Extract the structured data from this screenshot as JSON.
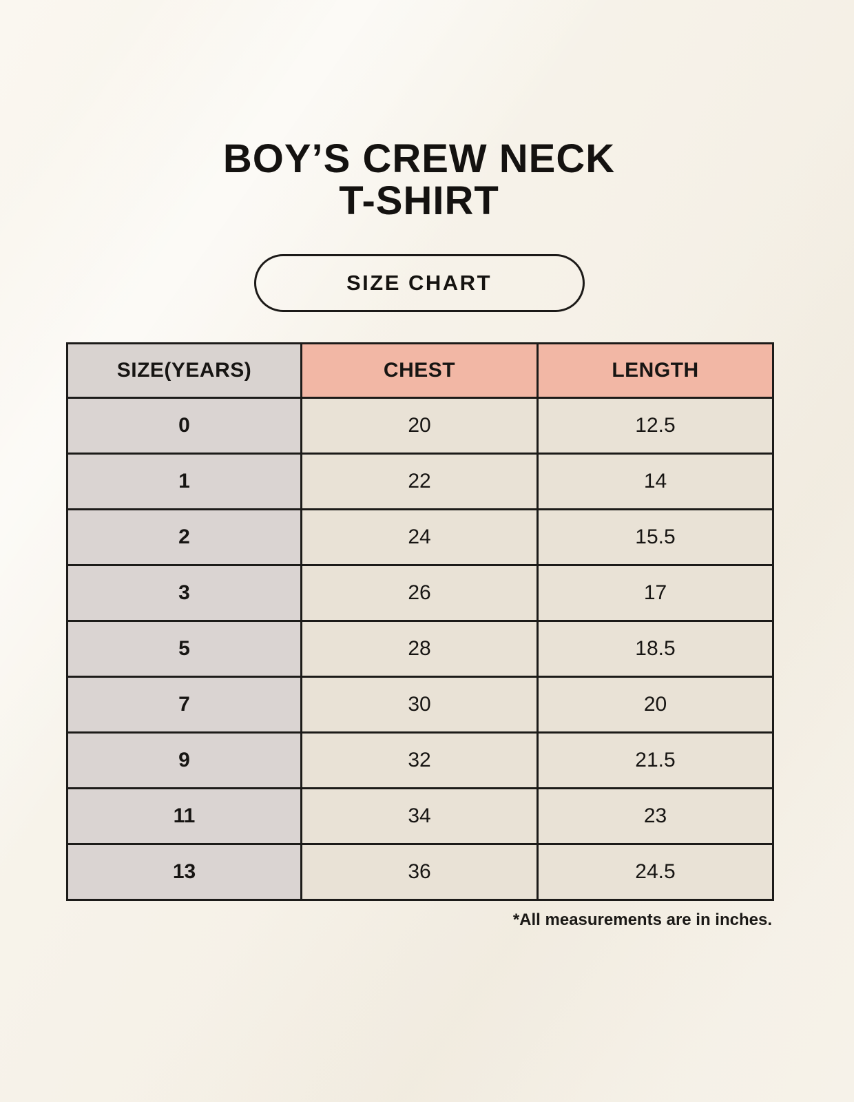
{
  "page": {
    "title": {
      "line1": "BOY’S CREW NECK",
      "line2": "T-SHIRT"
    },
    "badge": {
      "label": "SIZE CHART"
    },
    "footnote": "*All measurements are in inches."
  },
  "colors": {
    "background": "#f7f3ea",
    "header_pink": "#f2b7a5",
    "size_column_gray": "#dad4d2",
    "cell_beige": "#e9e2d6",
    "border_black": "#1c1b19",
    "text_black": "#171513"
  },
  "chart_data": {
    "type": "table",
    "title": "BOY’S CREW NECK T-SHIRT",
    "subtitle": "SIZE CHART",
    "columns": [
      "SIZE(YEARS)",
      "CHEST",
      "LENGTH"
    ],
    "rows": [
      [
        "0",
        "20",
        "12.5"
      ],
      [
        "1",
        "22",
        "14"
      ],
      [
        "2",
        "24",
        "15.5"
      ],
      [
        "3",
        "26",
        "17"
      ],
      [
        "5",
        "28",
        "18.5"
      ],
      [
        "7",
        "30",
        "20"
      ],
      [
        "9",
        "32",
        "21.5"
      ],
      [
        "11",
        "34",
        "23"
      ],
      [
        "13",
        "36",
        "24.5"
      ]
    ],
    "units_note": "*All measurements are in inches.",
    "layout_hints": {
      "header_fill": [
        "gray",
        "pink",
        "pink"
      ],
      "first_column_fill": "gray",
      "grid": "on"
    }
  }
}
